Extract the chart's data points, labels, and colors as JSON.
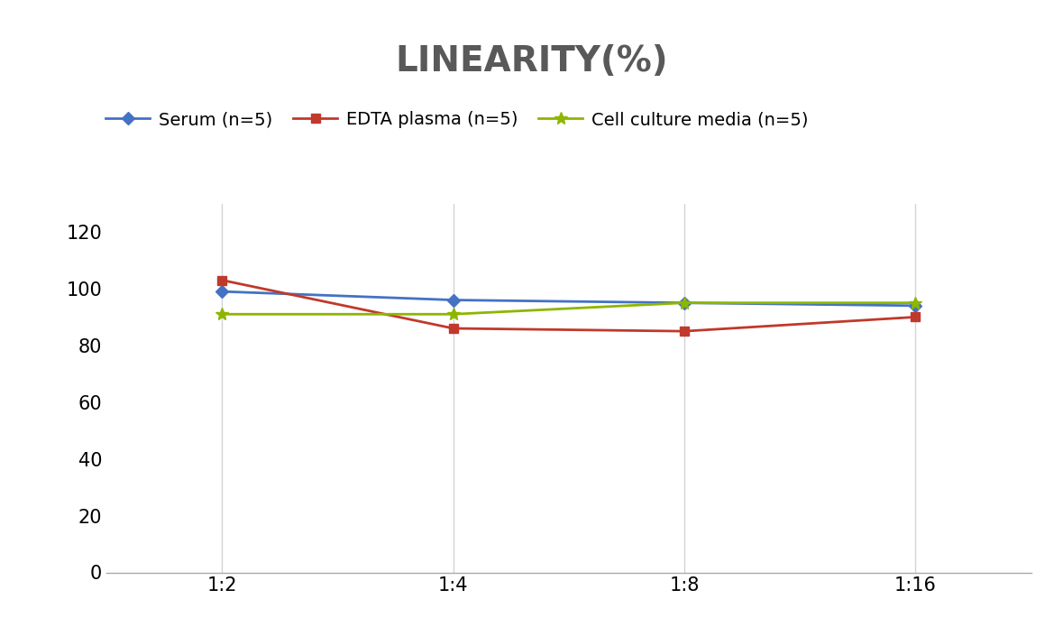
{
  "title": "LINEARITY(%)",
  "x_labels": [
    "1:2",
    "1:4",
    "1:8",
    "1:16"
  ],
  "x_positions": [
    0,
    1,
    2,
    3
  ],
  "series": [
    {
      "name": "Serum (n=5)",
      "values": [
        99,
        96,
        95,
        94
      ],
      "color": "#4472C4",
      "marker": "D",
      "markersize": 7
    },
    {
      "name": "EDTA plasma (n=5)",
      "values": [
        103,
        86,
        85,
        90
      ],
      "color": "#C0392B",
      "marker": "s",
      "markersize": 7
    },
    {
      "name": "Cell culture media (n=5)",
      "values": [
        91,
        91,
        95,
        95
      ],
      "color": "#8DB600",
      "marker": "*",
      "markersize": 10
    }
  ],
  "ylim": [
    0,
    130
  ],
  "yticks": [
    0,
    20,
    40,
    60,
    80,
    100,
    120
  ],
  "background_color": "#FFFFFF",
  "grid_color": "#D3D3D3",
  "title_fontsize": 28,
  "title_color": "#595959",
  "legend_fontsize": 14,
  "tick_fontsize": 15
}
